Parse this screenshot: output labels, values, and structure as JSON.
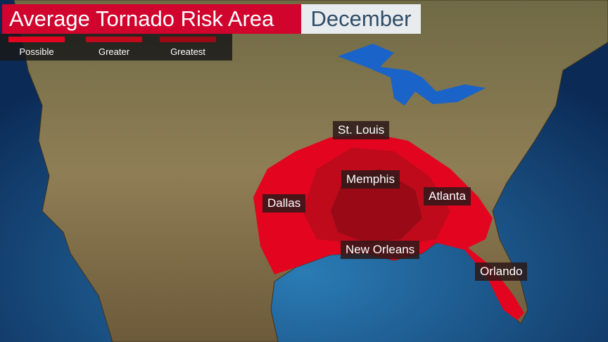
{
  "title": "Average Tornado Risk Area",
  "month": "December",
  "legend": [
    {
      "label": "Possible",
      "color": "#e3051f"
    },
    {
      "label": "Greater",
      "color": "#bf0a1c"
    },
    {
      "label": "Greatest",
      "color": "#9a0a16"
    }
  ],
  "cities": [
    "St. Louis",
    "Memphis",
    "Dallas",
    "Atlanta",
    "New Orleans",
    "Orlando"
  ],
  "colors": {
    "land": "#8a7a4e",
    "ocean": "#15477a"
  }
}
